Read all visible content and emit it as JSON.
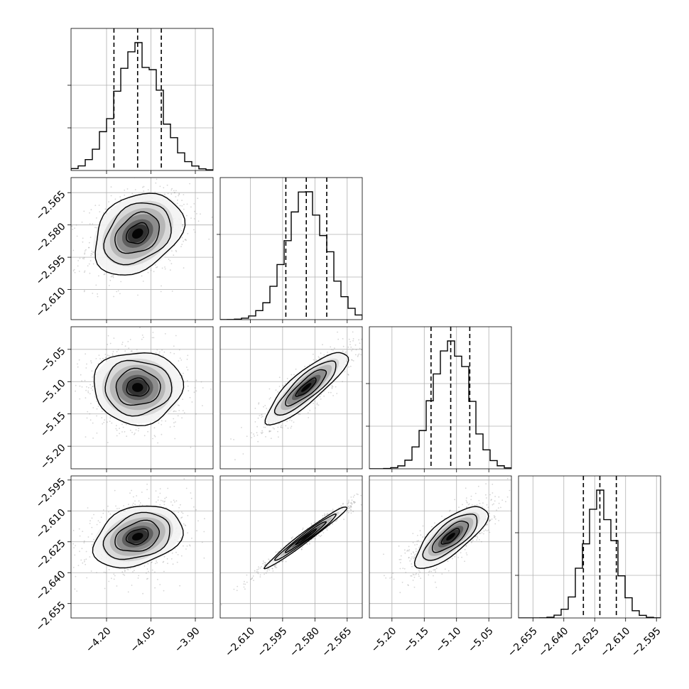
{
  "colors": {
    "line": "#000000",
    "grid": "#b0b0b0",
    "scatter": "#888888",
    "density_levels": [
      "#f3f3f3",
      "#d6d6d6",
      "#b2b2b2",
      "#888888",
      "#5a5a5a",
      "#2e2e2e",
      "#000000"
    ]
  },
  "chart_data": {
    "type": "corner",
    "grid": true,
    "parameters": [
      {
        "index": 0,
        "range": [
          -4.32,
          -3.84
        ],
        "ticks": [
          -4.2,
          -4.05,
          -3.9
        ],
        "tick_labels": [
          "−4.20",
          "−4.05",
          "−3.90"
        ],
        "mean": -4.095,
        "sigma": 0.075,
        "quantiles": [
          -4.175,
          -4.095,
          -4.015
        ]
      },
      {
        "index": 1,
        "range": [
          -2.624,
          -2.558
        ],
        "ticks": [
          -2.61,
          -2.595,
          -2.58,
          -2.565
        ],
        "tick_labels": [
          "−2.610",
          "−2.595",
          "−2.580",
          "−2.565"
        ],
        "mean": -2.584,
        "sigma": 0.0095,
        "quantiles": [
          -2.5935,
          -2.584,
          -2.5745
        ]
      },
      {
        "index": 2,
        "range": [
          -5.235,
          -5.015
        ],
        "ticks": [
          -5.2,
          -5.15,
          -5.1,
          -5.05
        ],
        "tick_labels": [
          "−5.20",
          "−5.15",
          "−5.10",
          "−5.05"
        ],
        "mean": -5.109,
        "sigma": 0.028,
        "quantiles": [
          -5.1395,
          -5.109,
          -5.0795
        ]
      },
      {
        "index": 3,
        "range": [
          -2.662,
          -2.593
        ],
        "ticks": [
          -2.655,
          -2.64,
          -2.625,
          -2.61,
          -2.595
        ],
        "tick_labels": [
          "−2.655",
          "−2.640",
          "−2.625",
          "−2.610",
          "−2.595"
        ],
        "mean": -2.6225,
        "sigma": 0.0075,
        "quantiles": [
          -2.6305,
          -2.6225,
          -2.6145
        ]
      }
    ],
    "correlations": [
      [
        1.0,
        0.3,
        0.0,
        0.3
      ],
      [
        0.3,
        1.0,
        0.85,
        0.98
      ],
      [
        0.0,
        0.85,
        1.0,
        0.75
      ],
      [
        0.3,
        0.98,
        0.75,
        1.0
      ]
    ],
    "sigma_levels": [
      0.5,
      1.0,
      1.5,
      2.0
    ],
    "histogram_bins": 20,
    "histogram_ticks": [
      2,
      4
    ]
  }
}
